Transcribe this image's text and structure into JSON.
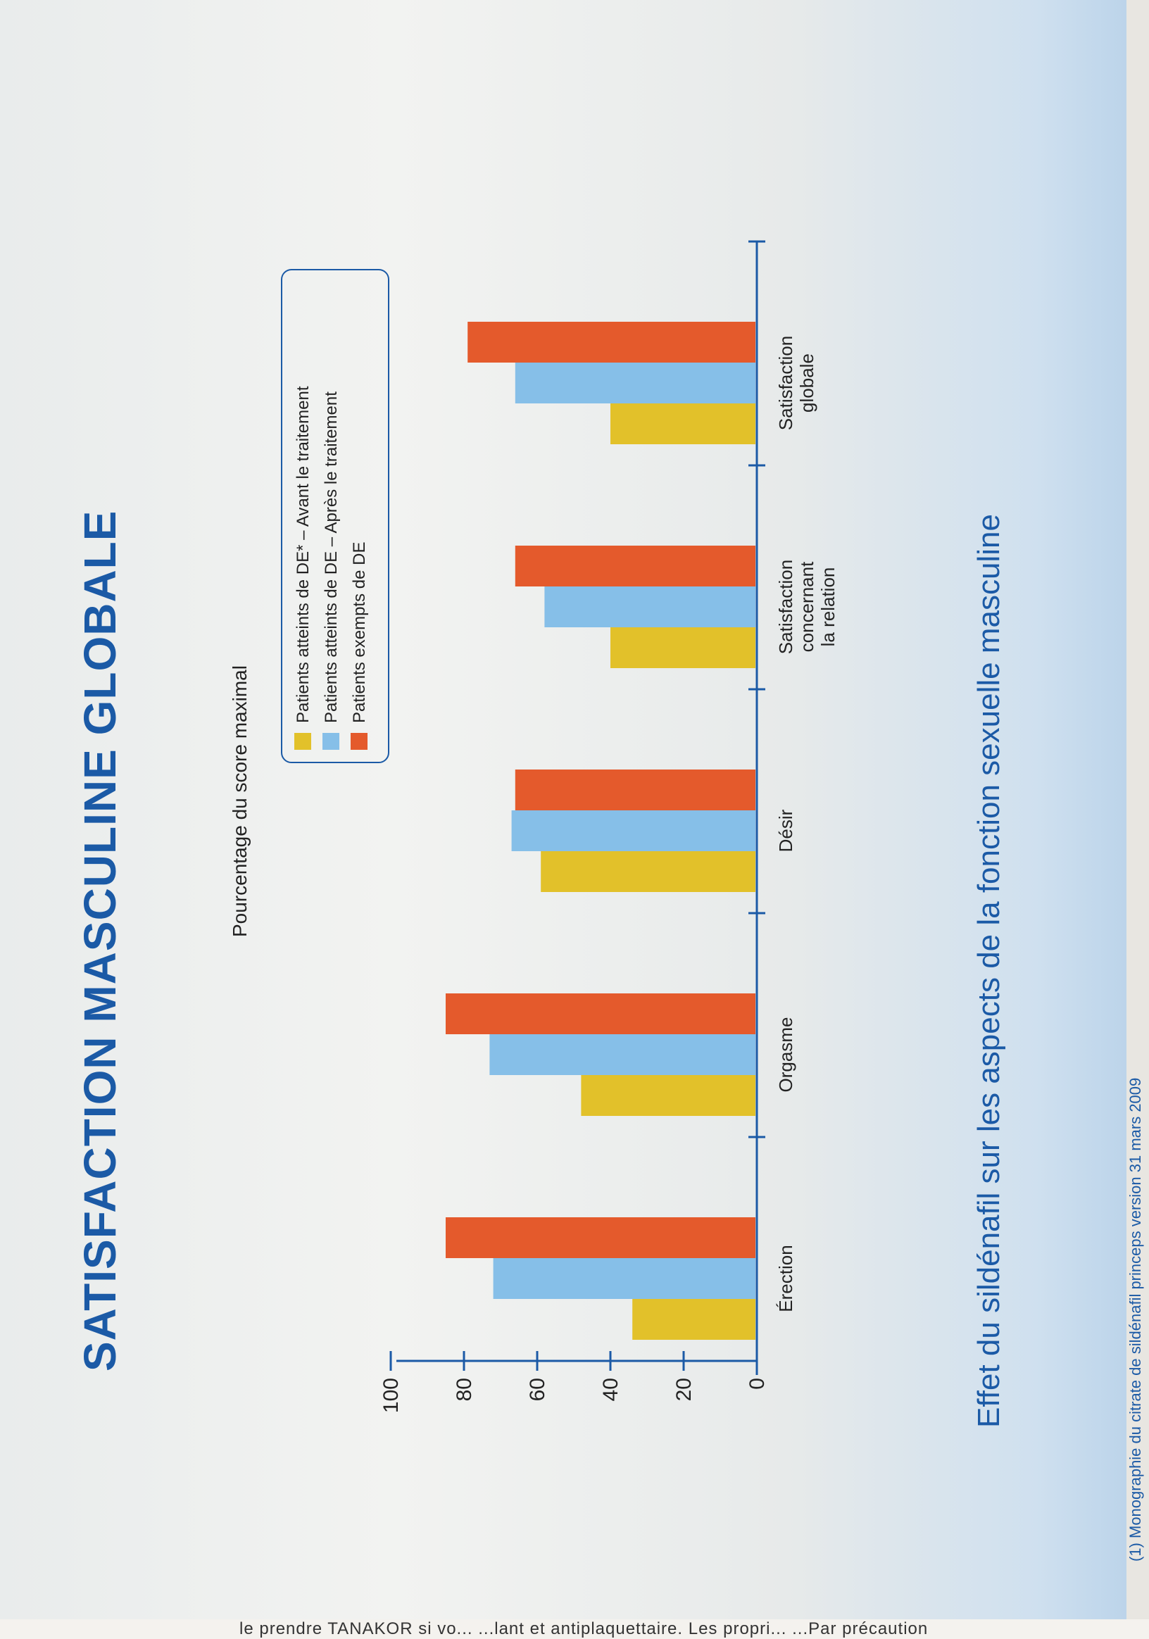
{
  "page": {
    "title": "SATISFACTION MASCULINE GLOBALE",
    "caption": "Effet du sildénafil sur les aspects de la fonction sexuelle masculine",
    "footnote": "(1) Monographie du citrate de sildénafil princeps version 31 mars 2009",
    "bottom_strip_text": "le prendre TANAKOR si vo...      ...lant et antiplaquettaire. Les propri...      ...Par précaution"
  },
  "colors": {
    "axis": "#1b5aa6",
    "series": [
      "#e2c12a",
      "#86bfe8",
      "#e45a2c"
    ]
  },
  "chart_data": {
    "type": "bar",
    "title": "",
    "ylabel": "Pourcentage du score maximal",
    "xlabel": "",
    "ylim": [
      0,
      100
    ],
    "yticks": [
      0,
      20,
      40,
      60,
      80,
      100
    ],
    "categories": [
      [
        "Érection"
      ],
      [
        "Orgasme"
      ],
      [
        "Désir"
      ],
      [
        "Satisfaction",
        "concernant",
        "la relation"
      ],
      [
        "Satisfaction",
        "globale"
      ]
    ],
    "series": [
      {
        "name": "Patients atteints de DE* – Avant le traitement",
        "values": [
          34,
          48,
          59,
          40,
          40
        ]
      },
      {
        "name": "Patients atteints de DE – Après le traitement",
        "values": [
          72,
          73,
          67,
          58,
          66
        ]
      },
      {
        "name": "Patients exempts de DE",
        "values": [
          85,
          85,
          66,
          66,
          79
        ]
      }
    ],
    "grid": false,
    "legend_position": "top-right"
  }
}
